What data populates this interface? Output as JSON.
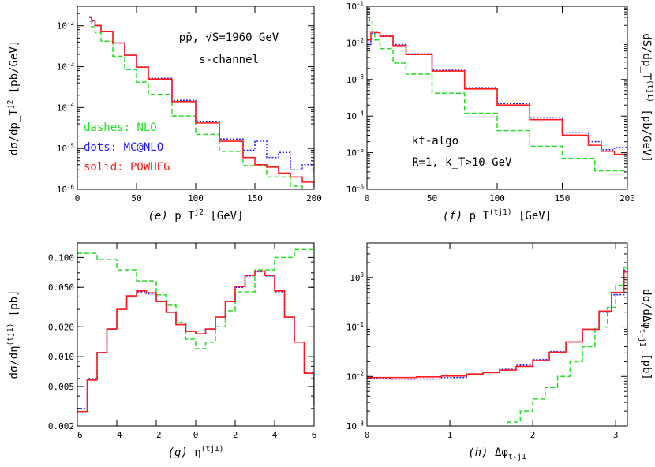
{
  "chart_data": [
    {
      "type": "line",
      "panel_label": "(e)",
      "xlabel": "p_T^{j2} [GeV]",
      "ylabel": "dσ/dp_T^{j2} [pb/GeV]",
      "y_scale": "log",
      "xlim": [
        0,
        200
      ],
      "ylim": [
        1e-06,
        0.03
      ],
      "x_ticks": [
        0,
        50,
        100,
        150,
        200
      ],
      "y_ticks": [
        {
          "value": 1e-06,
          "label": "10^-6"
        },
        {
          "value": 1e-05,
          "label": "10^-5"
        },
        {
          "value": 0.0001,
          "label": "10^-4"
        },
        {
          "value": 0.001,
          "label": "10^-3"
        },
        {
          "value": 0.01,
          "label": "10^-2"
        }
      ],
      "annotations": [
        "pp̄, √S=1960 GeV",
        "s-channel"
      ],
      "legend": [
        {
          "text": "dashes: NLO",
          "color": "#22dd22"
        },
        {
          "text": "dots: MC@NLO",
          "color": "#1a1aff"
        },
        {
          "text": "solid: POWHEG",
          "color": "#ff1a1a"
        }
      ],
      "series": [
        {
          "name": "NLO",
          "color": "#22dd22",
          "style": "dashed",
          "x": [
            10,
            12,
            15,
            20,
            30,
            40,
            50,
            60,
            80,
            100,
            120,
            140,
            160,
            180,
            190
          ],
          "y": [
            0.013,
            0.0095,
            0.0068,
            0.0042,
            0.0018,
            0.00085,
            0.00042,
            0.00021,
            6.2e-05,
            2.2e-05,
            8.5e-06,
            3.8e-06,
            2e-06,
            1.2e-06,
            1e-06
          ]
        },
        {
          "name": "MC@NLO",
          "color": "#1a1aff",
          "style": "dotted",
          "x": [
            10,
            12,
            15,
            20,
            30,
            40,
            50,
            60,
            80,
            100,
            120,
            140,
            150,
            160,
            170,
            180,
            190,
            200
          ],
          "y": [
            0.016,
            0.013,
            0.01,
            0.0072,
            0.0038,
            0.0019,
            0.00098,
            0.00052,
            0.00015,
            4.5e-05,
            1.7e-05,
            9e-06,
            1.5e-05,
            6e-06,
            8e-06,
            3e-06,
            4e-06,
            2.5e-06
          ]
        },
        {
          "name": "POWHEG",
          "color": "#ff1a1a",
          "style": "solid",
          "x": [
            10,
            12,
            15,
            20,
            30,
            40,
            50,
            60,
            80,
            100,
            120,
            140,
            150,
            160,
            170,
            180,
            190,
            200
          ],
          "y": [
            0.0165,
            0.0135,
            0.0102,
            0.0073,
            0.0038,
            0.0019,
            0.00097,
            0.0005,
            0.00014,
            4.2e-05,
            1.5e-05,
            6e-06,
            4e-06,
            3.5e-06,
            2.5e-06,
            2e-06,
            1.5e-06,
            1.2e-06
          ]
        }
      ]
    },
    {
      "type": "line",
      "panel_label": "(f)",
      "xlabel": "p_T^{(tj1)} [GeV]",
      "ylabel": "dS/dp_T^{(tj1)} [pb/GeV]",
      "y_scale": "log",
      "xlim": [
        0,
        200
      ],
      "ylim": [
        1e-06,
        0.1
      ],
      "x_ticks": [
        0,
        50,
        100,
        150,
        200
      ],
      "y_ticks": [
        {
          "value": 1e-06,
          "label": "10^-6"
        },
        {
          "value": 1e-05,
          "label": "10^-5"
        },
        {
          "value": 0.0001,
          "label": "10^-4"
        },
        {
          "value": 0.001,
          "label": "10^-3"
        },
        {
          "value": 0.01,
          "label": "10^-2"
        },
        {
          "value": 0.1,
          "label": "10^-1"
        }
      ],
      "annotations": [
        "kt-algo",
        "R=1, k_T>10 GeV"
      ],
      "series": [
        {
          "name": "NLO",
          "color": "#22dd22",
          "style": "dashed",
          "x": [
            0,
            2,
            4,
            6,
            10,
            20,
            30,
            50,
            75,
            100,
            125,
            150,
            175,
            200
          ],
          "y": [
            0.07,
            0.04,
            0.02,
            0.012,
            0.007,
            0.0028,
            0.0014,
            0.00042,
            0.00012,
            4e-05,
            1.5e-05,
            7e-06,
            3.2e-06,
            1.5e-06
          ]
        },
        {
          "name": "MC@NLO",
          "color": "#1a1aff",
          "style": "dotted",
          "x": [
            0,
            3,
            6,
            10,
            20,
            30,
            50,
            75,
            100,
            125,
            150,
            170,
            180,
            190,
            200
          ],
          "y": [
            0.009,
            0.018,
            0.02,
            0.016,
            0.009,
            0.005,
            0.0018,
            0.0006,
            0.00022,
            9e-05,
            3.5e-05,
            2e-05,
            1.2e-05,
            1.4e-05,
            1e-05
          ]
        },
        {
          "name": "POWHEG",
          "color": "#ff1a1a",
          "style": "solid",
          "x": [
            0,
            3,
            6,
            10,
            20,
            30,
            50,
            75,
            100,
            125,
            150,
            170,
            180,
            190,
            200
          ],
          "y": [
            0.012,
            0.02,
            0.019,
            0.015,
            0.0085,
            0.0048,
            0.0017,
            0.00055,
            0.0002,
            8e-05,
            3e-05,
            1.6e-05,
            1.1e-05,
            9e-06,
            8e-06
          ]
        }
      ]
    },
    {
      "type": "line",
      "panel_label": "(g)",
      "xlabel": "η^{(tj1)}",
      "ylabel": "dσ/dη^{(tj1)} [pb]",
      "y_scale": "log",
      "xlim": [
        -6,
        6
      ],
      "ylim": [
        0.002,
        0.14
      ],
      "x_ticks": [
        -6,
        -4,
        -2,
        0,
        2,
        4,
        6
      ],
      "y_ticks": [
        {
          "value": 0.002,
          "label": "0.002"
        },
        {
          "value": 0.005,
          "label": "0.005"
        },
        {
          "value": 0.01,
          "label": "0.010"
        },
        {
          "value": 0.02,
          "label": "0.020"
        },
        {
          "value": 0.05,
          "label": "0.050"
        },
        {
          "value": 0.1,
          "label": "0.100"
        }
      ],
      "series": [
        {
          "name": "NLO",
          "color": "#22dd22",
          "style": "dashed",
          "x": [
            -6,
            -5,
            -4,
            -3,
            -2,
            -1.5,
            -1,
            -0.5,
            0,
            0.5,
            1,
            1.5,
            2,
            3,
            4,
            5,
            6
          ],
          "y": [
            0.11,
            0.095,
            0.075,
            0.058,
            0.042,
            0.033,
            0.022,
            0.015,
            0.012,
            0.014,
            0.02,
            0.029,
            0.045,
            0.075,
            0.1,
            0.12,
            0.14
          ]
        },
        {
          "name": "MC@NLO",
          "color": "#1a1aff",
          "style": "dotted",
          "x": [
            -6,
            -5.5,
            -5,
            -4.5,
            -4,
            -3.5,
            -3,
            -2.5,
            -2,
            -1.5,
            -1,
            -0.5,
            0,
            0.5,
            1,
            1.5,
            2,
            2.5,
            3,
            3.5,
            4,
            4.5,
            5,
            5.5,
            6
          ],
          "y": [
            0.003,
            0.006,
            0.011,
            0.019,
            0.03,
            0.04,
            0.045,
            0.043,
            0.036,
            0.028,
            0.021,
            0.018,
            0.017,
            0.019,
            0.025,
            0.036,
            0.05,
            0.065,
            0.072,
            0.065,
            0.045,
            0.025,
            0.014,
            0.007,
            0.0035
          ]
        },
        {
          "name": "POWHEG",
          "color": "#ff1a1a",
          "style": "solid",
          "x": [
            -6,
            -5.5,
            -5,
            -4.5,
            -4,
            -3.5,
            -3,
            -2.5,
            -2,
            -1.5,
            -1,
            -0.5,
            0,
            0.5,
            1,
            1.5,
            2,
            2.5,
            3,
            3.5,
            4,
            4.5,
            5,
            5.5,
            6
          ],
          "y": [
            0.0028,
            0.0058,
            0.011,
            0.019,
            0.03,
            0.041,
            0.046,
            0.044,
            0.036,
            0.028,
            0.021,
            0.018,
            0.017,
            0.019,
            0.025,
            0.036,
            0.051,
            0.066,
            0.073,
            0.066,
            0.046,
            0.025,
            0.014,
            0.0068,
            0.0032
          ]
        }
      ]
    },
    {
      "type": "line",
      "panel_label": "(h)",
      "xlabel": "Δφ_{t-j1}",
      "ylabel": "dσ/dΔφ_{t-j1} [pb]",
      "y_scale": "log",
      "xlim": [
        0,
        3.14159
      ],
      "ylim": [
        0.001,
        5
      ],
      "x_ticks": [
        0,
        1,
        2,
        3
      ],
      "y_ticks": [
        {
          "value": 0.001,
          "label": "10^-3"
        },
        {
          "value": 0.01,
          "label": "10^-2"
        },
        {
          "value": 0.1,
          "label": "10^-1"
        },
        {
          "value": 1,
          "label": "10^0"
        }
      ],
      "series": [
        {
          "name": "NLO",
          "color": "#22dd22",
          "style": "dashed",
          "x": [
            1.57,
            1.7,
            1.85,
            2.0,
            2.15,
            2.3,
            2.45,
            2.6,
            2.75,
            2.9,
            3.0,
            3.1
          ],
          "y": [
            0.0005,
            0.0012,
            0.002,
            0.0035,
            0.006,
            0.01,
            0.02,
            0.04,
            0.1,
            0.25,
            0.7,
            1.6
          ]
        },
        {
          "name": "MC@NLO",
          "color": "#1a1aff",
          "style": "dotted",
          "x": [
            0,
            0.3,
            0.6,
            0.9,
            1.2,
            1.4,
            1.6,
            1.8,
            2.0,
            2.2,
            2.4,
            2.6,
            2.8,
            2.95,
            3.1
          ],
          "y": [
            0.009,
            0.0088,
            0.0089,
            0.0095,
            0.011,
            0.012,
            0.014,
            0.017,
            0.022,
            0.032,
            0.05,
            0.09,
            0.2,
            0.45,
            1.4
          ]
        },
        {
          "name": "POWHEG",
          "color": "#ff1a1a",
          "style": "solid",
          "x": [
            0,
            0.3,
            0.6,
            0.9,
            1.2,
            1.4,
            1.6,
            1.8,
            2.0,
            2.2,
            2.4,
            2.6,
            2.8,
            2.95,
            3.1
          ],
          "y": [
            0.0095,
            0.0095,
            0.0098,
            0.0102,
            0.0112,
            0.012,
            0.0135,
            0.016,
            0.021,
            0.031,
            0.05,
            0.09,
            0.21,
            0.5,
            1.3
          ]
        }
      ]
    }
  ]
}
